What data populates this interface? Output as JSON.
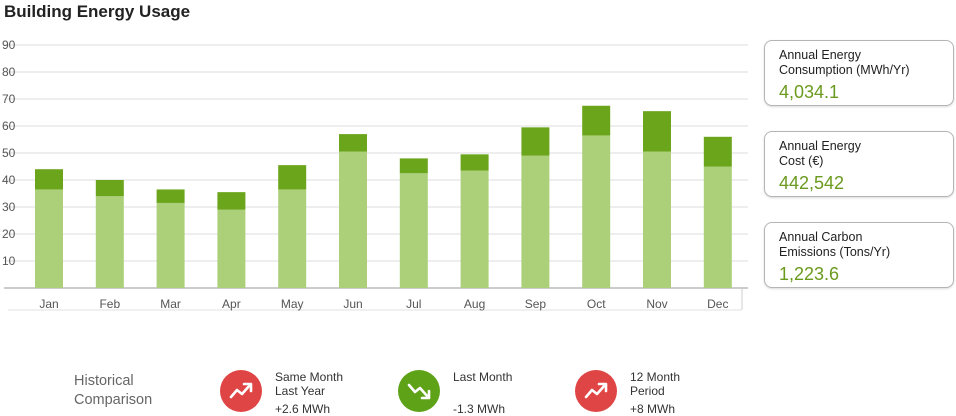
{
  "title": "Building Energy Usage",
  "colors": {
    "base_bar": "#acd07a",
    "top_bar": "#6ba51c",
    "value_green": "#6a9a1e",
    "trend_up": "#e04545",
    "trend_down": "#5ea218"
  },
  "chart_data": {
    "type": "bar",
    "stacked": true,
    "categories": [
      "Jan",
      "Feb",
      "Mar",
      "Apr",
      "May",
      "Jun",
      "Jul",
      "Aug",
      "Sep",
      "Oct",
      "Nov",
      "Dec"
    ],
    "series": [
      {
        "values": [
          36.5,
          34,
          31.5,
          29,
          36.5,
          50.5,
          42.5,
          43.5,
          49,
          56.5,
          50.5,
          45
        ]
      },
      {
        "values": [
          7.5,
          6,
          5,
          6.5,
          9,
          6.5,
          5.5,
          6,
          10.5,
          11,
          15,
          11
        ]
      }
    ],
    "ylim": [
      0,
      90
    ],
    "yticks": [
      10,
      20,
      30,
      40,
      50,
      60,
      70,
      80,
      90
    ],
    "grid": true,
    "legend": "none"
  },
  "kpis": [
    {
      "label": "Annual Energy\nConsumption (MWh/Yr)",
      "value": "4,034.1"
    },
    {
      "label": "Annual Energy\nCost (€)",
      "value": "442,542"
    },
    {
      "label": "Annual Carbon\nEmissions (Tons/Yr)",
      "value": "1,223.6"
    }
  ],
  "historical": {
    "title": "Historical\nComparison",
    "items": [
      {
        "label": "Same Month\nLast Year",
        "value": "+2.6 MWh",
        "trend": "up",
        "icon": "trend-up-icon"
      },
      {
        "label": "Last Month",
        "value": "-1.3 MWh",
        "trend": "down",
        "icon": "trend-down-icon"
      },
      {
        "label": "12 Month\nPeriod",
        "value": "+8 MWh",
        "trend": "up",
        "icon": "trend-up-icon"
      }
    ]
  }
}
